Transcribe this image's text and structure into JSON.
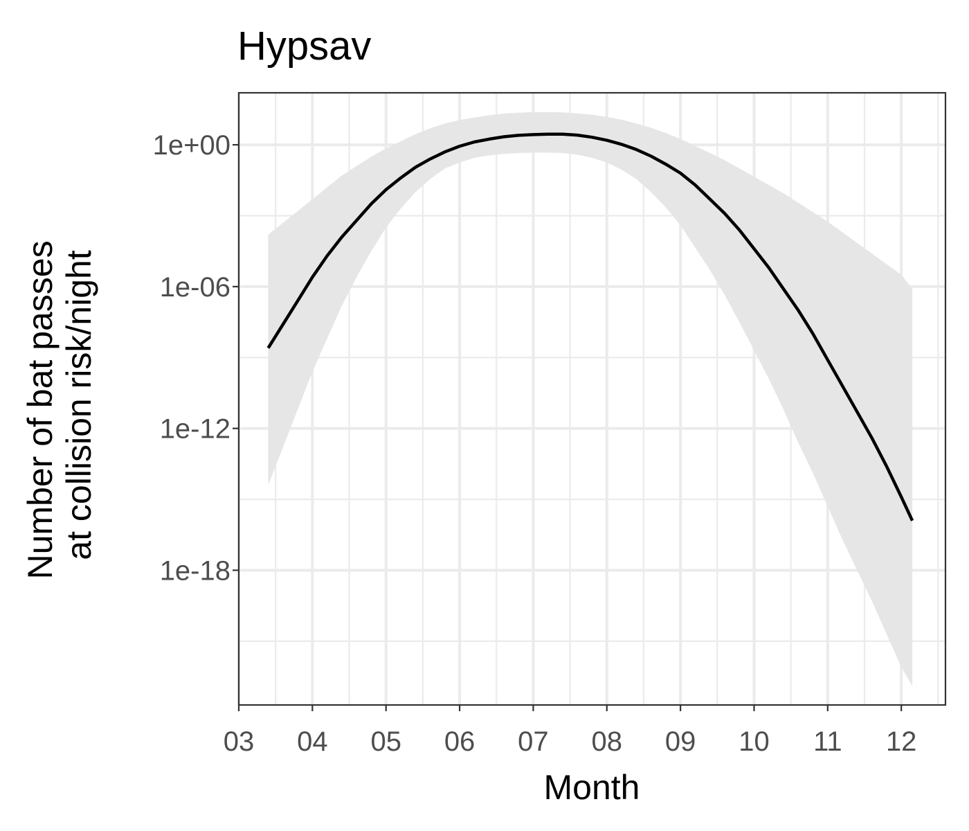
{
  "chart_data": {
    "type": "line",
    "title": "Hypsav",
    "xlabel": "Month",
    "ylabel_lines": [
      "Number of bat passes",
      "at collision risk/night"
    ],
    "x_scale": "month",
    "y_scale": "log10",
    "xlim": [
      "03",
      "12.6"
    ],
    "ylim_log10": [
      -23.7,
      2.2
    ],
    "x_ticks": [
      "03",
      "04",
      "05",
      "06",
      "07",
      "08",
      "09",
      "10",
      "11",
      "12"
    ],
    "y_ticks": [
      {
        "label": "1e+00",
        "log10": 0
      },
      {
        "label": "1e-06",
        "log10": -6
      },
      {
        "label": "1e-12",
        "log10": -12
      },
      {
        "label": "1e-18",
        "log10": -18
      }
    ],
    "grid": true,
    "legend": "none",
    "colors": {
      "line": "#000000",
      "ribbon": "#e6e6e6",
      "grid": "#ebebeb",
      "panel_border": "#333333",
      "tick_label": "#4d4d4d"
    },
    "series": [
      {
        "x": [
          3.4,
          3.6,
          3.8,
          4.0,
          4.2,
          4.4,
          4.6,
          4.8,
          5.0,
          5.2,
          5.4,
          5.6,
          5.8,
          6.0,
          6.2,
          6.4,
          6.6,
          6.8,
          7.0,
          7.2,
          7.4,
          7.6,
          7.8,
          8.0,
          8.2,
          8.4,
          8.6,
          8.8,
          9.0,
          9.2,
          9.4,
          9.6,
          9.8,
          10.0,
          10.2,
          10.4,
          10.6,
          10.8,
          11.0,
          11.2,
          11.4,
          11.6,
          11.8,
          12.0,
          12.15
        ],
        "log10_y": [
          -8.6,
          -7.6,
          -6.6,
          -5.6,
          -4.7,
          -3.9,
          -3.2,
          -2.5,
          -1.9,
          -1.4,
          -0.95,
          -0.6,
          -0.3,
          -0.06,
          0.12,
          0.24,
          0.34,
          0.4,
          0.43,
          0.45,
          0.45,
          0.41,
          0.32,
          0.19,
          0.02,
          -0.2,
          -0.48,
          -0.82,
          -1.2,
          -1.7,
          -2.3,
          -2.9,
          -3.6,
          -4.4,
          -5.2,
          -6.1,
          -7.0,
          -8.0,
          -9.1,
          -10.2,
          -11.3,
          -12.4,
          -13.6,
          -14.9,
          -15.9
        ],
        "ci_lower_log10": [
          -14.4,
          -12.8,
          -11.2,
          -9.6,
          -8.2,
          -6.8,
          -5.6,
          -4.5,
          -3.5,
          -2.7,
          -2.0,
          -1.45,
          -1.0,
          -0.75,
          -0.55,
          -0.45,
          -0.38,
          -0.35,
          -0.33,
          -0.33,
          -0.35,
          -0.42,
          -0.55,
          -0.75,
          -1.05,
          -1.45,
          -2.0,
          -2.65,
          -3.4,
          -4.35,
          -5.3,
          -6.35,
          -7.5,
          -8.7,
          -9.9,
          -11.2,
          -12.6,
          -13.9,
          -15.3,
          -16.7,
          -18.0,
          -19.3,
          -20.7,
          -22.1,
          -22.9
        ],
        "ci_upper_log10": [
          -3.8,
          -3.3,
          -2.8,
          -2.3,
          -1.8,
          -1.3,
          -0.9,
          -0.5,
          -0.15,
          0.15,
          0.45,
          0.7,
          0.9,
          1.05,
          1.15,
          1.25,
          1.32,
          1.36,
          1.38,
          1.38,
          1.37,
          1.33,
          1.27,
          1.18,
          1.06,
          0.9,
          0.72,
          0.5,
          0.25,
          -0.05,
          -0.35,
          -0.65,
          -1.0,
          -1.35,
          -1.7,
          -2.05,
          -2.45,
          -2.85,
          -3.25,
          -3.7,
          -4.15,
          -4.6,
          -5.05,
          -5.5,
          -6.1
        ]
      }
    ]
  }
}
